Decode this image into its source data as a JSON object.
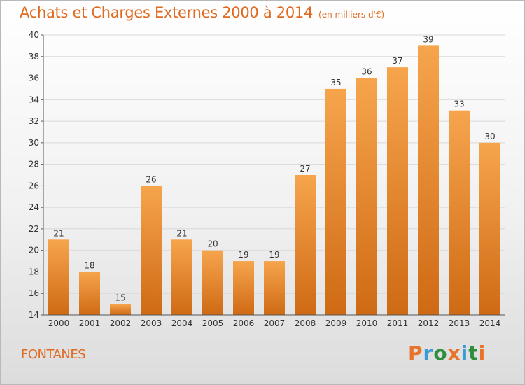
{
  "header": {
    "title": "Achats et Charges Externes 2000 à 2014",
    "subtitle": "(en milliers d'€)"
  },
  "footer": {
    "commune": "FONTANES",
    "logo_text": "Proxiti"
  },
  "colors": {
    "accent": "#e06a1f",
    "bar_top": "#f6a54d",
    "bar_bottom": "#cf6a14",
    "logo": [
      "#e8732a",
      "#3a9bd6",
      "#2f8e3e",
      "#e8732a",
      "#3a9bd6",
      "#2f8e3e",
      "#e8732a"
    ]
  },
  "chart_data": {
    "type": "bar",
    "title": "Achats et Charges Externes 2000 à 2014",
    "subtitle": "(en milliers d'€)",
    "categories": [
      "2000",
      "2001",
      "2002",
      "2003",
      "2004",
      "2005",
      "2006",
      "2007",
      "2008",
      "2009",
      "2010",
      "2011",
      "2012",
      "2013",
      "2014"
    ],
    "values": [
      21,
      18,
      15,
      26,
      21,
      20,
      19,
      19,
      27,
      35,
      36,
      37,
      39,
      33,
      30
    ],
    "ylim": [
      14,
      40
    ],
    "yticks": [
      14,
      16,
      18,
      20,
      22,
      24,
      26,
      28,
      30,
      32,
      34,
      36,
      38,
      40
    ],
    "grid": true,
    "data_labels": true
  }
}
